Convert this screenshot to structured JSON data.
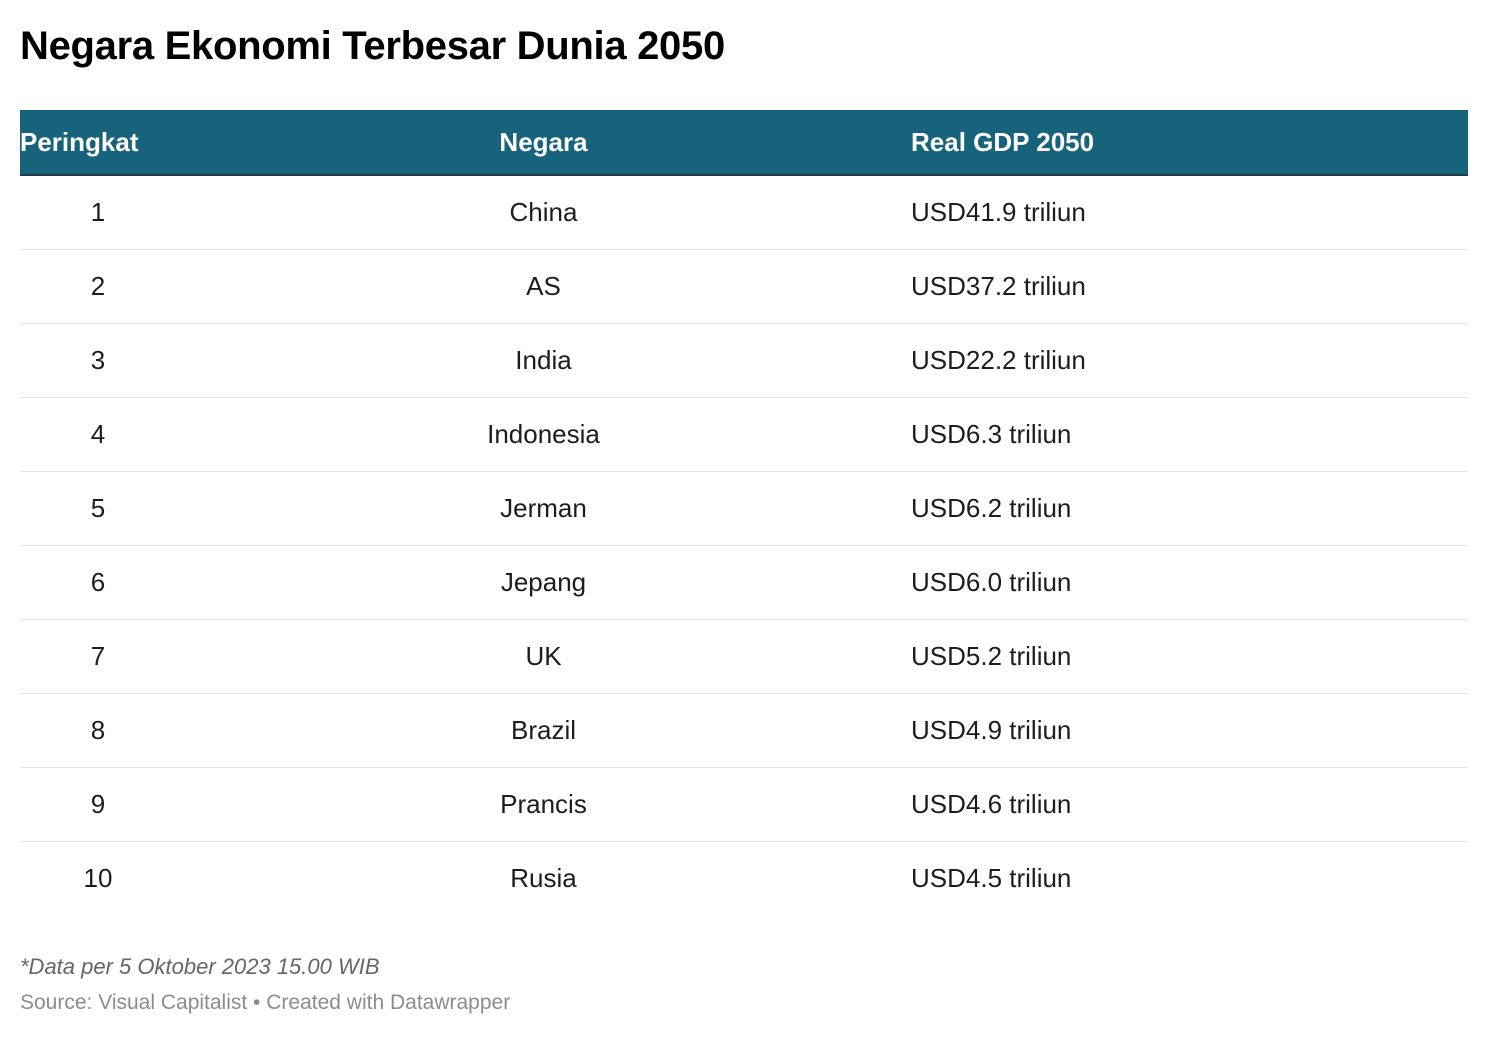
{
  "chart_data": {
    "type": "table",
    "title": "Negara Ekonomi Terbesar Dunia 2050",
    "columns": [
      "Peringkat",
      "Negara",
      "Real GDP 2050"
    ],
    "rows": [
      {
        "rank": "1",
        "country": "China",
        "gdp": "USD41.9 triliun"
      },
      {
        "rank": "2",
        "country": "AS",
        "gdp": "USD37.2 triliun"
      },
      {
        "rank": "3",
        "country": "India",
        "gdp": "USD22.2 triliun"
      },
      {
        "rank": "4",
        "country": "Indonesia",
        "gdp": "USD6.3 triliun"
      },
      {
        "rank": "5",
        "country": "Jerman",
        "gdp": "USD6.2 triliun"
      },
      {
        "rank": "6",
        "country": "Jepang",
        "gdp": "USD6.0 triliun"
      },
      {
        "rank": "7",
        "country": "UK",
        "gdp": "USD5.2 triliun"
      },
      {
        "rank": "8",
        "country": "Brazil",
        "gdp": "USD4.9 triliun"
      },
      {
        "rank": "9",
        "country": "Prancis",
        "gdp": "USD4.6 triliun"
      },
      {
        "rank": "10",
        "country": "Rusia",
        "gdp": "USD4.5 triliun"
      }
    ],
    "note": "*Data per 5 Oktober 2023 15.00 WIB",
    "source": "Source: Visual Capitalist • Created with Datawrapper"
  },
  "colors": {
    "header_background": "#18637c",
    "header_text": "#ffffff",
    "row_divider": "#e4e4e4"
  }
}
